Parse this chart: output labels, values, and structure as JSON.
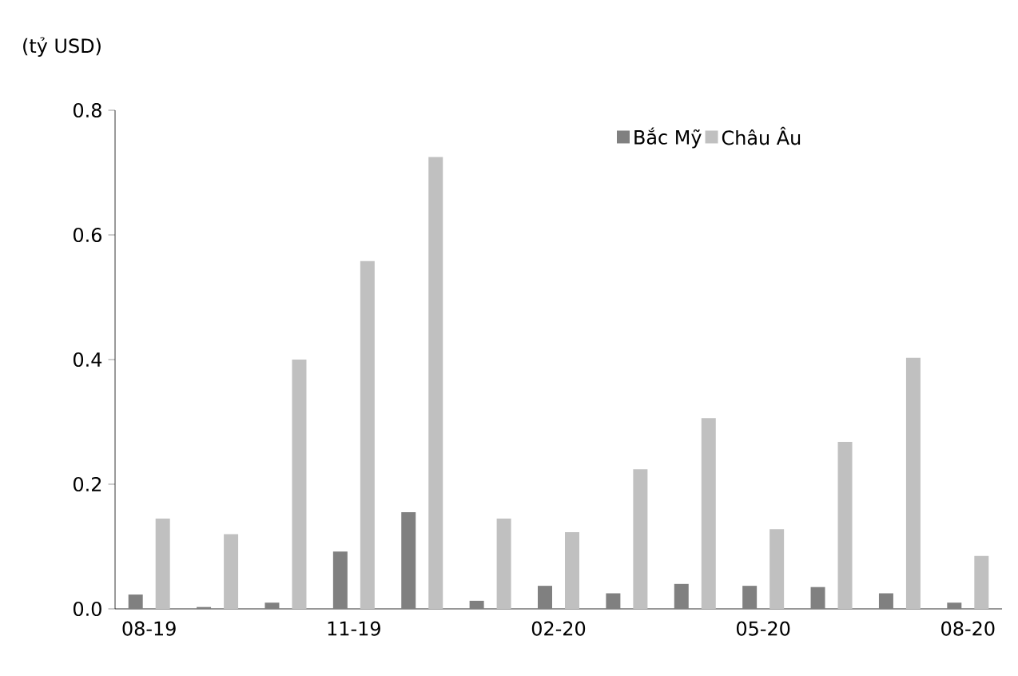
{
  "chart_data": {
    "type": "bar",
    "ylabel": "(tỷ USD)",
    "categories": [
      "08-19",
      null,
      null,
      "11-19",
      null,
      null,
      "02-20",
      null,
      null,
      "05-20",
      null,
      null,
      "08-20"
    ],
    "series": [
      {
        "name": "Bắc Mỹ",
        "color": "#808080",
        "values": [
          0.023,
          0.003,
          0.01,
          0.092,
          0.155,
          0.013,
          0.037,
          0.025,
          0.04,
          0.037,
          0.035,
          0.025,
          0.01
        ]
      },
      {
        "name": "Châu Âu",
        "color": "#c0c0c0",
        "values": [
          0.145,
          0.12,
          0.4,
          0.558,
          0.725,
          0.145,
          0.123,
          0.224,
          0.306,
          0.128,
          0.268,
          0.403,
          0.085
        ]
      }
    ],
    "ylim": [
      0,
      0.8
    ],
    "yticks": [
      {
        "value": 0,
        "label": "0.0"
      },
      0.2,
      0.4,
      0.6,
      0.8
    ],
    "legend": "top right"
  }
}
